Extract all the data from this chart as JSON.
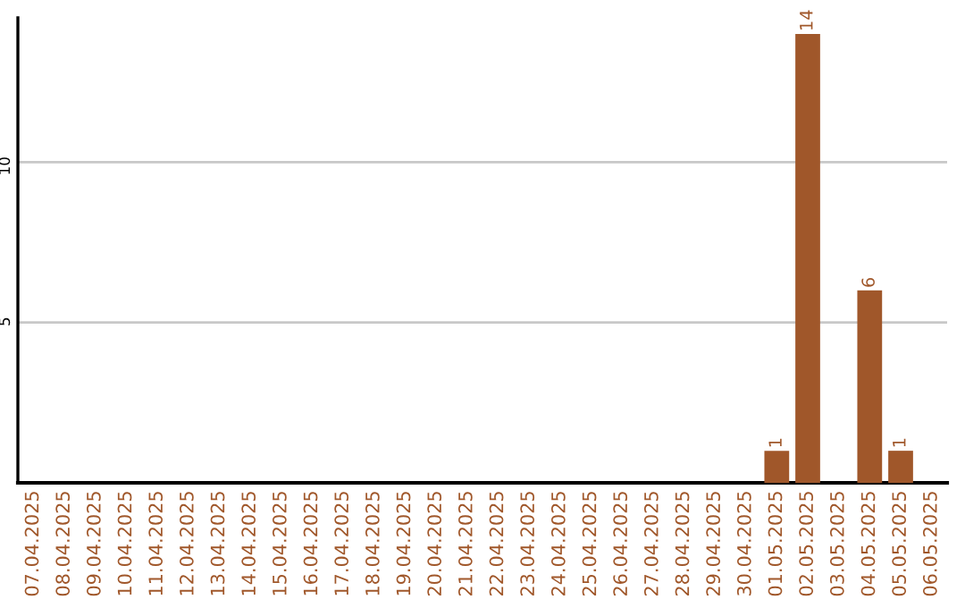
{
  "chart_data": {
    "type": "bar",
    "categories": [
      "07.04.2025",
      "08.04.2025",
      "09.04.2025",
      "10.04.2025",
      "11.04.2025",
      "12.04.2025",
      "13.04.2025",
      "14.04.2025",
      "15.04.2025",
      "16.04.2025",
      "17.04.2025",
      "18.04.2025",
      "19.04.2025",
      "20.04.2025",
      "21.04.2025",
      "22.04.2025",
      "23.04.2025",
      "24.04.2025",
      "25.04.2025",
      "26.04.2025",
      "27.04.2025",
      "28.04.2025",
      "29.04.2025",
      "30.04.2025",
      "01.05.2025",
      "02.05.2025",
      "03.05.2025",
      "04.05.2025",
      "05.05.2025",
      "06.05.2025"
    ],
    "values": [
      0,
      0,
      0,
      0,
      0,
      0,
      0,
      0,
      0,
      0,
      0,
      0,
      0,
      0,
      0,
      0,
      0,
      0,
      0,
      0,
      0,
      0,
      0,
      0,
      1,
      14,
      0,
      6,
      1,
      0
    ],
    "value_labels": [
      null,
      null,
      null,
      null,
      null,
      null,
      null,
      null,
      null,
      null,
      null,
      null,
      null,
      null,
      null,
      null,
      null,
      null,
      null,
      null,
      null,
      null,
      null,
      null,
      "1",
      "14",
      null,
      "6",
      "1",
      null
    ],
    "color": "#a0572a",
    "ylim": [
      0,
      14.5
    ],
    "yticks": [
      5,
      10
    ],
    "grid": "y",
    "legend": false
  }
}
